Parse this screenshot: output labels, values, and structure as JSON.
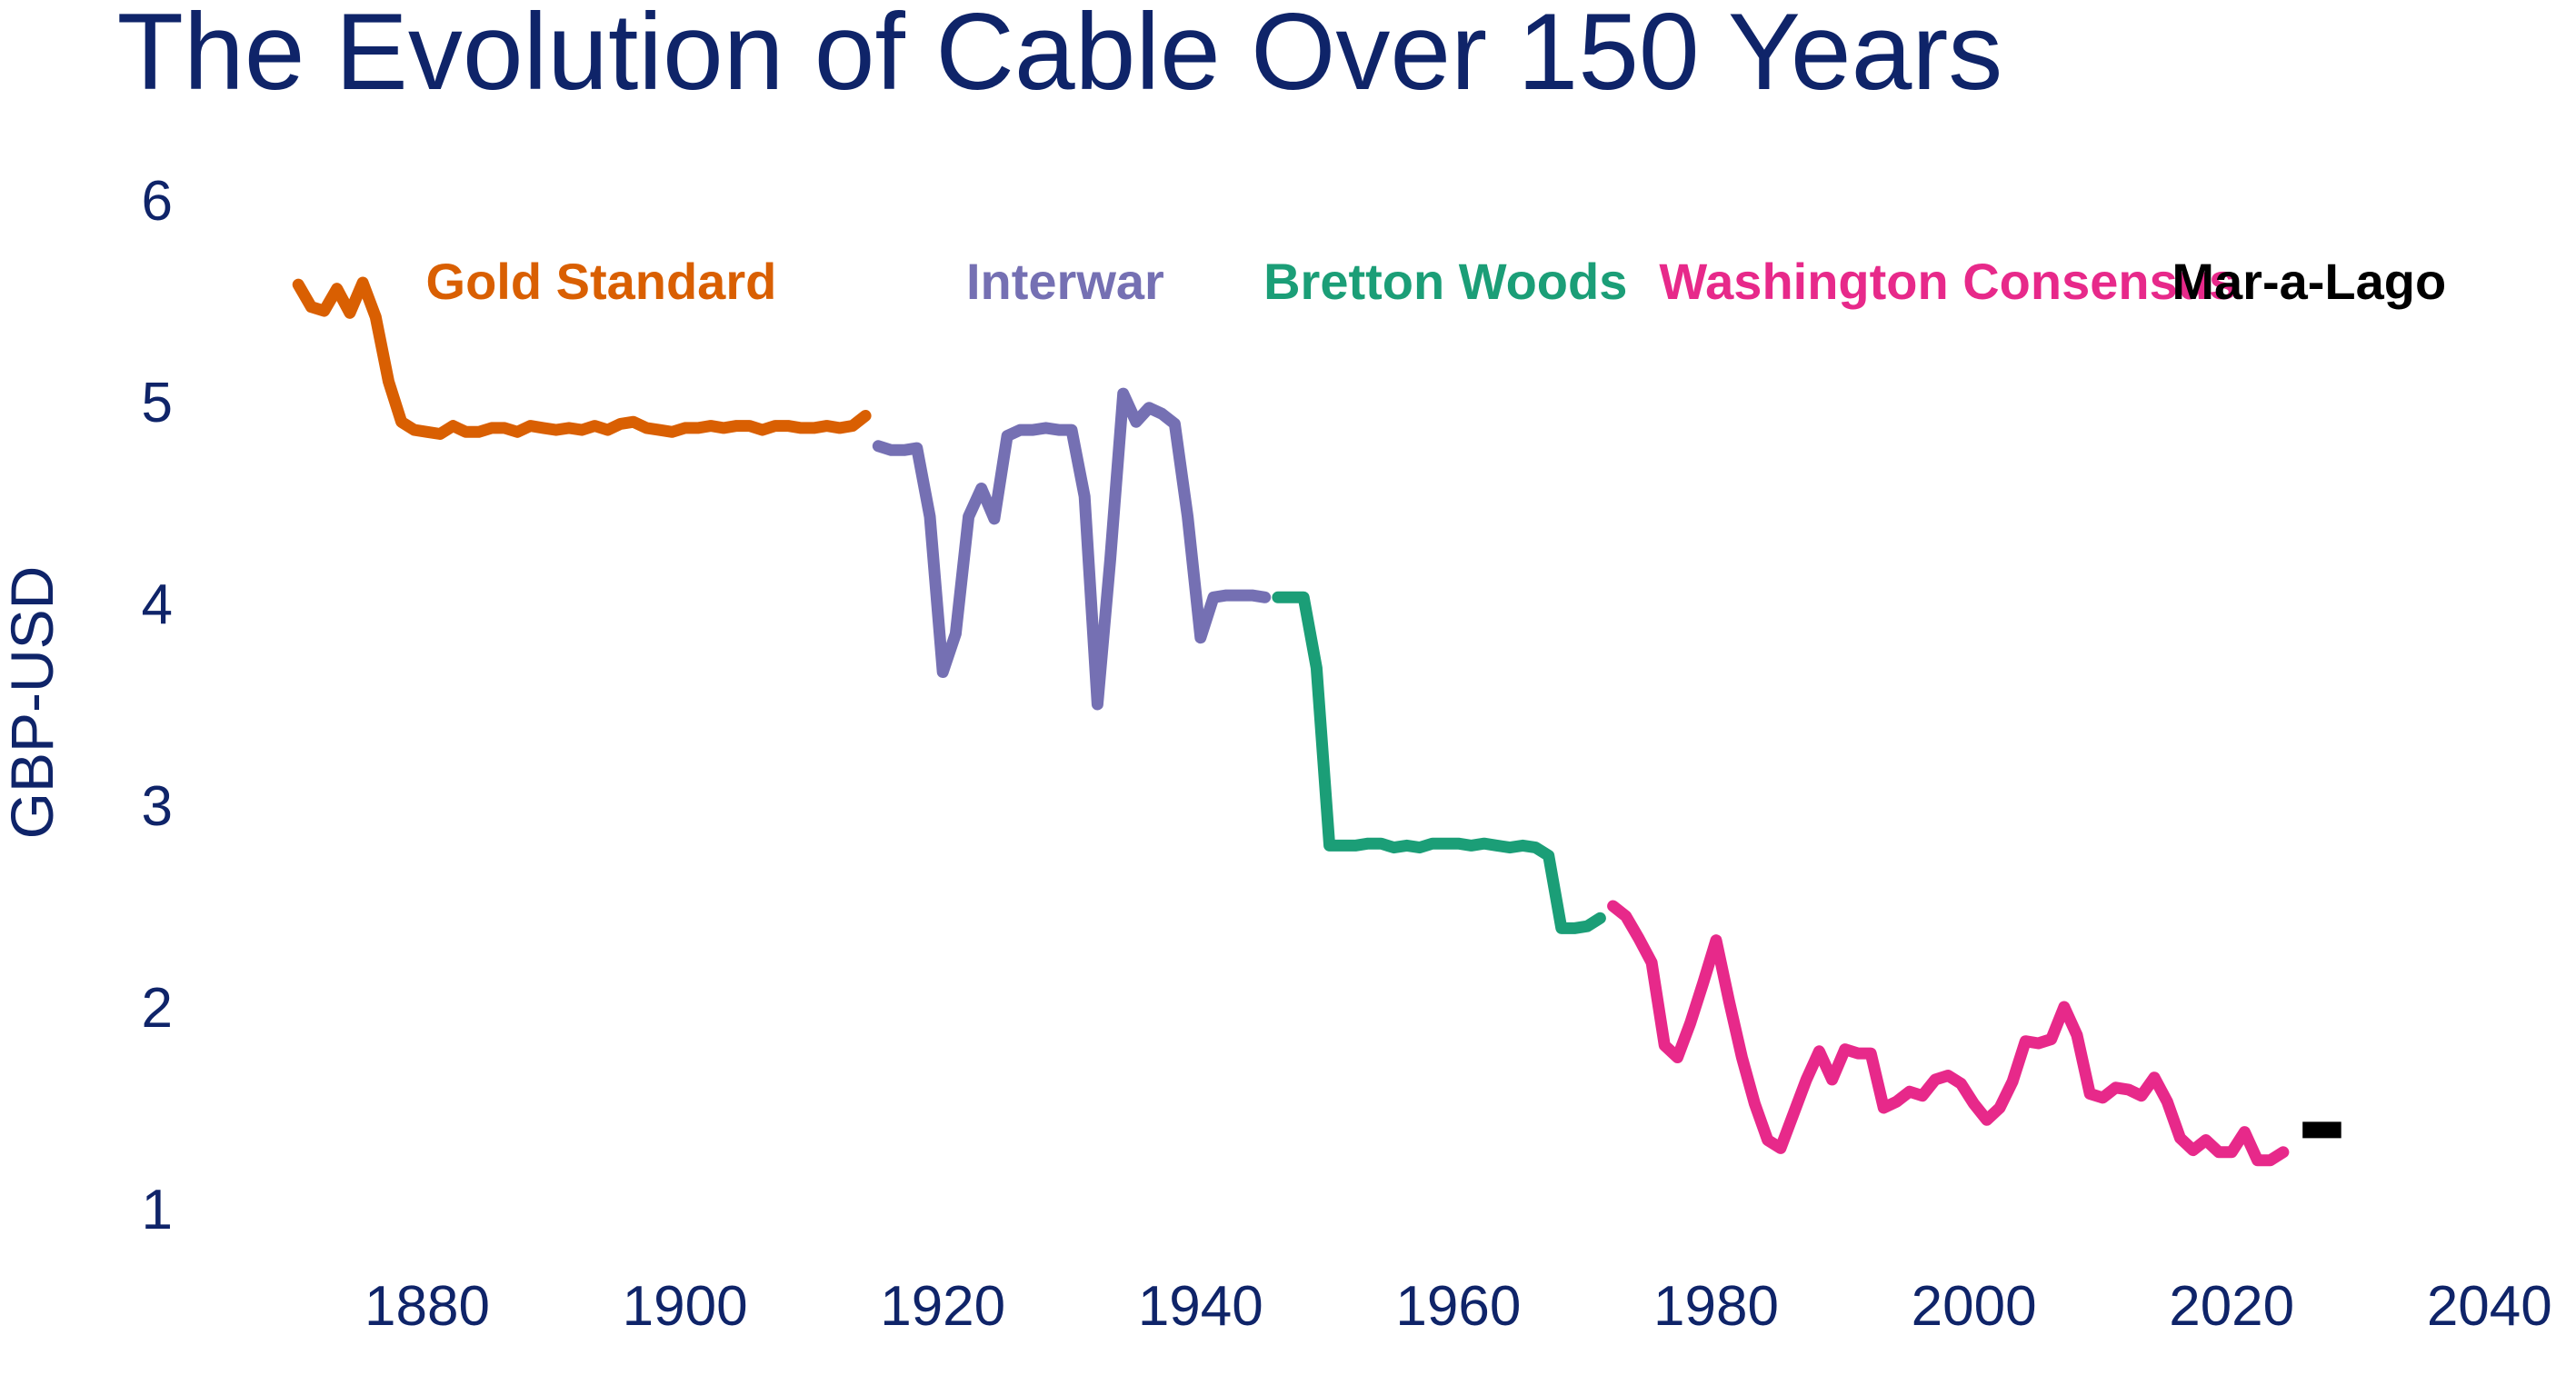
{
  "chart_data": {
    "type": "line",
    "title": "The Evolution of Cable Over 150 Years",
    "xlabel": "",
    "ylabel": "GBP-USD",
    "xlim": [
      1868,
      2042
    ],
    "ylim": [
      0.75,
      6.25
    ],
    "x_ticks": [
      1880,
      1900,
      1920,
      1940,
      1960,
      1980,
      2000,
      2020,
      2040
    ],
    "y_ticks": [
      1,
      2,
      3,
      4,
      5,
      6
    ],
    "grid": false,
    "legend": "none",
    "series": [
      {
        "name": "Gold Standard",
        "color": "#d95f02",
        "x": [
          1870,
          1871,
          1872,
          1873,
          1874,
          1875,
          1876,
          1877,
          1878,
          1879,
          1880,
          1881,
          1882,
          1883,
          1884,
          1885,
          1886,
          1887,
          1888,
          1889,
          1890,
          1891,
          1892,
          1893,
          1894,
          1895,
          1896,
          1897,
          1898,
          1899,
          1900,
          1901,
          1902,
          1903,
          1904,
          1905,
          1906,
          1907,
          1908,
          1909,
          1910,
          1911,
          1912,
          1913,
          1914
        ],
        "y": [
          5.58,
          5.47,
          5.45,
          5.56,
          5.44,
          5.59,
          5.42,
          5.1,
          4.9,
          4.86,
          4.85,
          4.84,
          4.88,
          4.85,
          4.85,
          4.87,
          4.87,
          4.85,
          4.88,
          4.87,
          4.86,
          4.87,
          4.86,
          4.88,
          4.86,
          4.89,
          4.9,
          4.87,
          4.86,
          4.85,
          4.87,
          4.87,
          4.88,
          4.87,
          4.88,
          4.88,
          4.86,
          4.88,
          4.88,
          4.87,
          4.87,
          4.88,
          4.87,
          4.88,
          4.93
        ]
      },
      {
        "name": "Interwar",
        "color": "#7570b3",
        "x": [
          1915,
          1916,
          1917,
          1918,
          1919,
          1920,
          1921,
          1922,
          1923,
          1924,
          1925,
          1926,
          1927,
          1928,
          1929,
          1930,
          1931,
          1932,
          1933,
          1934,
          1935,
          1936,
          1937,
          1938,
          1939,
          1940,
          1941,
          1942,
          1943,
          1944,
          1945
        ],
        "y": [
          4.78,
          4.76,
          4.76,
          4.77,
          4.43,
          3.66,
          3.85,
          4.43,
          4.57,
          4.42,
          4.83,
          4.86,
          4.86,
          4.87,
          4.86,
          4.86,
          4.53,
          3.5,
          4.22,
          5.04,
          4.9,
          4.97,
          4.94,
          4.89,
          4.43,
          3.83,
          4.03,
          4.04,
          4.04,
          4.04,
          4.03
        ]
      },
      {
        "name": "Bretton Woods",
        "color": "#1b9e77",
        "x": [
          1946,
          1947,
          1948,
          1949,
          1950,
          1951,
          1952,
          1953,
          1954,
          1955,
          1956,
          1957,
          1958,
          1959,
          1960,
          1961,
          1962,
          1963,
          1964,
          1965,
          1966,
          1967,
          1968,
          1969,
          1970,
          1971
        ],
        "y": [
          4.03,
          4.03,
          4.03,
          3.68,
          2.8,
          2.8,
          2.8,
          2.81,
          2.81,
          2.79,
          2.8,
          2.79,
          2.81,
          2.81,
          2.81,
          2.8,
          2.81,
          2.8,
          2.79,
          2.8,
          2.79,
          2.75,
          2.39,
          2.39,
          2.4,
          2.44
        ]
      },
      {
        "name": "Washington Consensus",
        "color": "#e7298a",
        "x": [
          1972,
          1973,
          1974,
          1975,
          1976,
          1977,
          1978,
          1979,
          1980,
          1981,
          1982,
          1983,
          1984,
          1985,
          1986,
          1987,
          1988,
          1989,
          1990,
          1991,
          1992,
          1993,
          1994,
          1995,
          1996,
          1997,
          1998,
          1999,
          2000,
          2001,
          2002,
          2003,
          2004,
          2005,
          2006,
          2007,
          2008,
          2009,
          2010,
          2011,
          2012,
          2013,
          2014,
          2015,
          2016,
          2017,
          2018,
          2019,
          2020,
          2021,
          2022,
          2023,
          2024
        ],
        "y": [
          2.5,
          2.45,
          2.34,
          2.22,
          1.81,
          1.75,
          1.92,
          2.12,
          2.33,
          2.03,
          1.75,
          1.52,
          1.34,
          1.3,
          1.47,
          1.64,
          1.78,
          1.64,
          1.79,
          1.77,
          1.77,
          1.5,
          1.53,
          1.58,
          1.56,
          1.64,
          1.66,
          1.62,
          1.52,
          1.44,
          1.5,
          1.63,
          1.83,
          1.82,
          1.84,
          2.0,
          1.86,
          1.57,
          1.55,
          1.6,
          1.59,
          1.56,
          1.65,
          1.53,
          1.35,
          1.29,
          1.34,
          1.28,
          1.28,
          1.38,
          1.24,
          1.24,
          1.28
        ]
      },
      {
        "name": "Mar-a-Lago",
        "color": "#000000",
        "x": [
          2025.5,
          2028.5
        ],
        "y": [
          1.39,
          1.39
        ]
      }
    ],
    "annotations": [
      {
        "text": "Gold Standard",
        "color": "#d95f02",
        "x": 1893.5,
        "y": 5.6
      },
      {
        "text": "Interwar",
        "color": "#7570b3",
        "x": 1929.5,
        "y": 5.6
      },
      {
        "text": "Bretton Woods",
        "color": "#1b9e77",
        "x": 1959,
        "y": 5.6
      },
      {
        "text": "Washington Consensus",
        "color": "#e7298a",
        "x": 1998,
        "y": 5.6
      },
      {
        "text": "Mar-a-Lago",
        "color": "#000000",
        "x": 2026,
        "y": 5.6
      }
    ]
  }
}
